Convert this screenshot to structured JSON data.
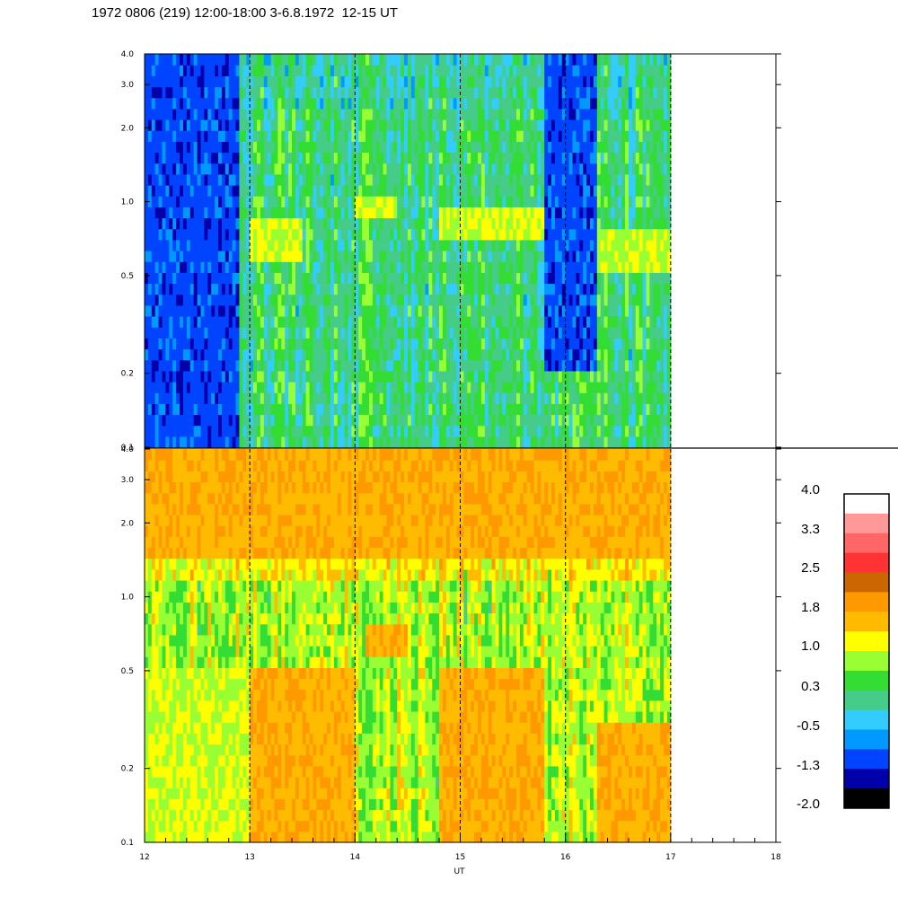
{
  "title": "1972 0806 (219) 12:00-18:00 3-6.8.1972  12-15 UT",
  "chart_data": [
    {
      "type": "heatmap",
      "panel": "top",
      "xlabel": "",
      "ylabel": "",
      "x_range": [
        12,
        18
      ],
      "data_x_range": [
        12,
        17
      ],
      "y_range": [
        0.1,
        4.0
      ],
      "y_scale": "log",
      "y_ticks": [
        "0.1",
        "0.2",
        "0.5",
        "1.0",
        "2.0",
        "3.0",
        "4.0"
      ],
      "marker_lines_ut": [
        13,
        14,
        15,
        16,
        17
      ],
      "dominant_bands": [
        {
          "ut": [
            12.0,
            12.9
          ],
          "freq": [
            0.1,
            4.0
          ],
          "level": -1.3
        },
        {
          "ut": [
            13.0,
            13.5
          ],
          "freq": [
            0.6,
            0.9
          ],
          "level": 1.0
        },
        {
          "ut": [
            14.0,
            14.4
          ],
          "freq": [
            0.9,
            1.1
          ],
          "level": 1.0
        },
        {
          "ut": [
            14.8,
            15.8
          ],
          "freq": [
            0.7,
            0.95
          ],
          "level": 1.0
        },
        {
          "ut": [
            15.8,
            16.3
          ],
          "freq": [
            0.2,
            4.0
          ],
          "level": -1.3
        },
        {
          "ut": [
            16.3,
            17.0
          ],
          "freq": [
            0.5,
            0.75
          ],
          "level": 1.0
        }
      ]
    },
    {
      "type": "heatmap",
      "panel": "bottom",
      "xlabel": "UT",
      "ylabel": "",
      "x_range": [
        12,
        18
      ],
      "data_x_range": [
        12,
        17
      ],
      "y_range": [
        0.1,
        4.0
      ],
      "y_scale": "log",
      "y_ticks": [
        "0.1",
        "0.2",
        "0.5",
        "1.0",
        "2.0",
        "3.0",
        "4.0"
      ],
      "x_ticks": [
        "12",
        "13",
        "14",
        "15",
        "16",
        "17",
        "18"
      ],
      "marker_lines_ut": [
        13,
        14,
        15,
        16,
        17
      ],
      "dominant_bands": [
        {
          "ut": [
            12.0,
            13.0
          ],
          "freq": [
            0.1,
            0.5
          ],
          "level": 1.0
        },
        {
          "ut": [
            12.0,
            17.0
          ],
          "freq": [
            1.5,
            4.0
          ],
          "level": 1.8
        },
        {
          "ut": [
            13.0,
            14.0
          ],
          "freq": [
            0.1,
            0.5
          ],
          "level": 1.8
        },
        {
          "ut": [
            14.1,
            14.5
          ],
          "freq": [
            0.6,
            0.8
          ],
          "level": 1.8
        },
        {
          "ut": [
            14.8,
            15.8
          ],
          "freq": [
            0.1,
            0.5
          ],
          "level": 1.8
        },
        {
          "ut": [
            16.3,
            17.0
          ],
          "freq": [
            0.1,
            0.3
          ],
          "level": 1.8
        }
      ]
    }
  ],
  "colorbar": {
    "tick_labels": [
      "4.0",
      "3.3",
      "2.5",
      "1.8",
      "1.0",
      "0.3",
      "-0.5",
      "-1.3",
      "-2.0"
    ],
    "colors": [
      "#ffffff",
      "#ff9999",
      "#ff6666",
      "#ff3333",
      "#cc6600",
      "#ff9900",
      "#ffbb00",
      "#ffff00",
      "#99ff33",
      "#33dd33",
      "#44cc88",
      "#33ccff",
      "#0099ff",
      "#0044ff",
      "#0000aa",
      "#000000"
    ]
  }
}
